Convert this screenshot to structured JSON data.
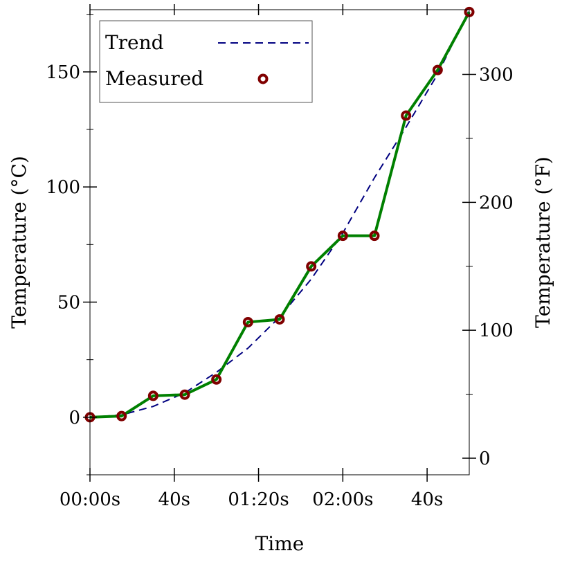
{
  "chart_data": {
    "type": "line",
    "xlabel": "Time",
    "ylabel_left": "Temperature (°C)",
    "ylabel_right": "Temperature (°F)",
    "xlim": [
      0,
      180
    ],
    "ylim_left": [
      -25,
      177
    ],
    "ylim_right": [
      -13,
      350.6
    ],
    "x_ticks": [
      {
        "value": 0,
        "label": "00:00s"
      },
      {
        "value": 40,
        "label": "40s"
      },
      {
        "value": 80,
        "label": "01:20s"
      },
      {
        "value": 120,
        "label": "02:00s"
      },
      {
        "value": 160,
        "label": "40s"
      }
    ],
    "y_ticks_left": [
      {
        "value": 0,
        "label": "0"
      },
      {
        "value": 50,
        "label": "50"
      },
      {
        "value": 100,
        "label": "100"
      },
      {
        "value": 150,
        "label": "150"
      }
    ],
    "y_minor_ticks_left": [
      -25,
      25,
      75,
      125,
      175
    ],
    "y_ticks_right": [
      {
        "value": 0,
        "label": "0"
      },
      {
        "value": 100,
        "label": "100"
      },
      {
        "value": 200,
        "label": "200"
      },
      {
        "value": 300,
        "label": "300"
      }
    ],
    "y_minor_ticks_right": [
      50,
      150,
      250
    ],
    "legend": {
      "position": "top-left",
      "entries": [
        {
          "label": "Trend",
          "style": "dashed-line"
        },
        {
          "label": "Measured",
          "style": "circle-marker"
        }
      ]
    },
    "series": [
      {
        "name": "Measured",
        "color": "#008000",
        "marker_color": "#800000",
        "x": [
          0,
          15,
          30,
          45,
          60,
          75,
          90,
          105,
          120,
          135,
          150,
          165,
          180
        ],
        "y": [
          0,
          0.5,
          9.3,
          9.8,
          16.4,
          41.3,
          42.5,
          65.5,
          78.8,
          78.8,
          131.0,
          150.8,
          176.0
        ]
      },
      {
        "name": "Trend",
        "color": "#000080",
        "style": "dashed",
        "x": [
          0,
          15,
          30,
          45,
          60,
          75,
          90,
          105,
          120,
          135,
          150,
          165,
          180
        ],
        "y": [
          0,
          1.0,
          4.7,
          10.6,
          19.5,
          30.0,
          43.5,
          60.0,
          80.0,
          104.0,
          126.0,
          149.0,
          177.0
        ]
      }
    ]
  }
}
